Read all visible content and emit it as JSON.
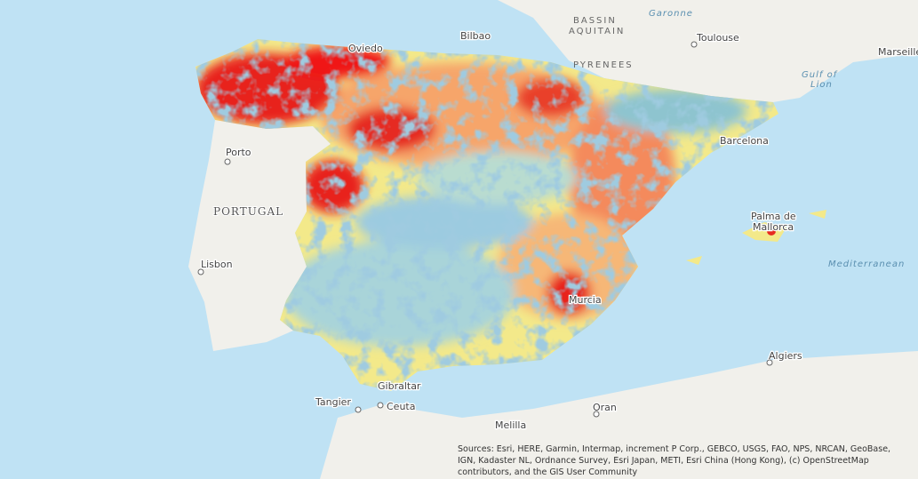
{
  "map": {
    "labels": {
      "bassin": "BASSIN",
      "aquitain": "AQUITAIN",
      "garonne": "Garonne",
      "toulouse": "Toulouse",
      "marseille": "Marseille",
      "pyrenees": "PYRENEES",
      "gulf_of": "Gulf of",
      "lion": "Lion",
      "oviedo": "Oviedo",
      "bilbao": "Bilbao",
      "barcelona": "Barcelona",
      "porto": "Porto",
      "portugal": "PORTUGAL",
      "lisbon": "Lisbon",
      "palma_de": "Palma de",
      "mallorca": "Mallorca",
      "mediterranean": "Mediterranean",
      "murcia": "Murcia",
      "gibraltar": "Gibraltar",
      "tangier": "Tangier",
      "ceuta": "Ceuta",
      "melilla": "Melilla",
      "oran": "Oran",
      "algiers": "Algiers"
    },
    "attribution": [
      "Sources: Esri, HERE, Garmin, Intermap, increment P Corp., GEBCO, USGS, FAO, NPS, NRCAN, GeoBase,",
      "IGN, Kadaster NL, Ordnance Survey, Esri Japan, METI, Esri China (Hong Kong), (c) OpenStreetMap",
      "contributors, and the GIS User Community"
    ]
  }
}
